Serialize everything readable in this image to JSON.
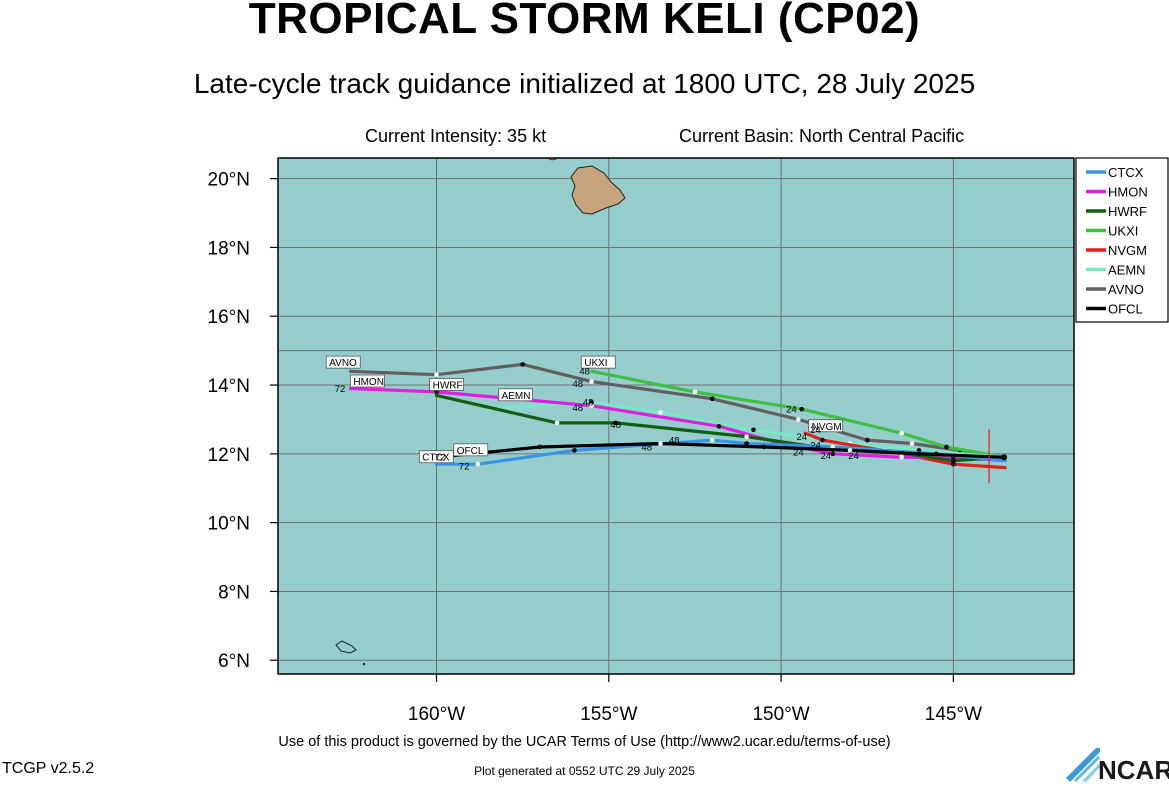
{
  "header": {
    "title": "TROPICAL STORM KELI (CP02)",
    "subtitle": "Late-cycle track guidance initialized at 1800 UTC, 28 July 2025",
    "intensity": "Current Intensity: 35 kt",
    "basin": "Current Basin: North Central Pacific"
  },
  "map": {
    "lon_range": [
      -164.6,
      -141.5
    ],
    "lat_range": [
      5.6,
      20.6
    ],
    "ocean_color": "#96cece",
    "land_color": "#c8a47e",
    "grid": true,
    "lat_ticks": [
      {
        "value": 20,
        "label": "20°N"
      },
      {
        "value": 18,
        "label": "18°N"
      },
      {
        "value": 16,
        "label": "16°N"
      },
      {
        "value": 14,
        "label": "14°N"
      },
      {
        "value": 12,
        "label": "12°N"
      },
      {
        "value": 10,
        "label": "10°N"
      },
      {
        "value": 8,
        "label": "8°N"
      },
      {
        "value": 6,
        "label": "6°N"
      }
    ],
    "lon_ticks": [
      {
        "value": -160,
        "label": "160°W"
      },
      {
        "value": -155,
        "label": "155°W"
      },
      {
        "value": -150,
        "label": "150°W"
      },
      {
        "value": -145,
        "label": "145°W"
      }
    ],
    "current_position": {
      "lon": -143.5,
      "lat": 11.9
    },
    "legend_position": "top-right",
    "legend": [
      {
        "name": "CTCX",
        "color": "#3a94e6"
      },
      {
        "name": "HMON",
        "color": "#e020e0"
      },
      {
        "name": "HWRF",
        "color": "#106010"
      },
      {
        "name": "UKXI",
        "color": "#40c040"
      },
      {
        "name": "NVGM",
        "color": "#e0201a"
      },
      {
        "name": "AEMN",
        "color": "#7ae8c4"
      },
      {
        "name": "AVNO",
        "color": "#606060"
      },
      {
        "name": "OFCL",
        "color": "#000000"
      }
    ],
    "tracks": [
      {
        "name": "AVNO",
        "color": "#606060",
        "label": "AVNO",
        "label_pos": [
          -163.2,
          14.55
        ],
        "points": [
          [
            -143.5,
            11.9
          ],
          [
            -144.8,
            12.1
          ],
          [
            -146.2,
            12.3
          ],
          [
            -147.5,
            12.4
          ],
          [
            -149.5,
            13.0
          ],
          [
            -152.0,
            13.6
          ],
          [
            -155.5,
            14.1
          ],
          [
            -157.5,
            14.6
          ],
          [
            -160.0,
            14.3
          ],
          [
            -162.5,
            14.4
          ]
        ]
      },
      {
        "name": "UKXI",
        "color": "#40c040",
        "label": "UKXI",
        "label_pos": [
          -155.8,
          14.55
        ],
        "points": [
          [
            -143.5,
            11.9
          ],
          [
            -145.2,
            12.2
          ],
          [
            -146.5,
            12.6
          ],
          [
            -149.4,
            13.3
          ],
          [
            -152.5,
            13.8
          ],
          [
            -155.5,
            14.4
          ]
        ]
      },
      {
        "name": "AEMN",
        "color": "#7ae8c4",
        "label": "AEMN",
        "label_pos": [
          -158.2,
          13.6
        ],
        "points": [
          [
            -143.5,
            11.9
          ],
          [
            -146.0,
            12.1
          ],
          [
            -148.0,
            12.3
          ],
          [
            -150.8,
            12.7
          ],
          [
            -153.5,
            13.2
          ],
          [
            -155.5,
            13.5
          ],
          [
            -158.5,
            13.3
          ]
        ]
      },
      {
        "name": "NVGM",
        "color": "#e0201a",
        "label": "NVGM",
        "label_pos": [
          -149.2,
          12.7
        ],
        "points": [
          [
            -143.5,
            11.6
          ],
          [
            -145.0,
            11.7
          ],
          [
            -146.5,
            12.0
          ],
          [
            -148.8,
            12.4
          ],
          [
            -149.3,
            12.6
          ]
        ]
      },
      {
        "name": "HMON",
        "color": "#e020e0",
        "label": "HMON",
        "label_pos": [
          -162.5,
          14.0
        ],
        "points": [
          [
            -143.5,
            11.8
          ],
          [
            -145.0,
            11.9
          ],
          [
            -146.5,
            11.9
          ],
          [
            -148.5,
            12.0
          ],
          [
            -150.0,
            12.3
          ],
          [
            -151.8,
            12.8
          ],
          [
            -155.5,
            13.4
          ],
          [
            -160.0,
            13.8
          ],
          [
            -162.5,
            13.9
          ]
        ]
      },
      {
        "name": "HWRF",
        "color": "#106010",
        "label": "HWRF",
        "label_pos": [
          -160.2,
          13.9
        ],
        "points": [
          [
            -143.5,
            11.9
          ],
          [
            -145.0,
            11.8
          ],
          [
            -147.0,
            12.1
          ],
          [
            -149.0,
            12.2
          ],
          [
            -151.0,
            12.5
          ],
          [
            -154.8,
            12.9
          ],
          [
            -156.5,
            12.9
          ],
          [
            -160.0,
            13.7
          ]
        ]
      },
      {
        "name": "CTCX",
        "color": "#3a94e6",
        "label": "CTCX",
        "label_pos": [
          -160.5,
          11.8
        ],
        "points": [
          [
            -143.5,
            11.8
          ],
          [
            -145.5,
            12.0
          ],
          [
            -148.5,
            12.2
          ],
          [
            -151.0,
            12.3
          ],
          [
            -152.0,
            12.4
          ],
          [
            -156.0,
            12.1
          ],
          [
            -158.8,
            11.7
          ],
          [
            -160.0,
            11.7
          ]
        ]
      },
      {
        "name": "OFCL",
        "color": "#000000",
        "label": "OFCL",
        "label_pos": [
          -159.5,
          12.0
        ],
        "points": [
          [
            -143.5,
            11.9
          ],
          [
            -146.0,
            12.0
          ],
          [
            -148.0,
            12.1
          ],
          [
            -150.5,
            12.2
          ],
          [
            -153.5,
            12.3
          ],
          [
            -157.0,
            12.2
          ],
          [
            -160.0,
            11.9
          ]
        ]
      }
    ],
    "hour_labels": [
      {
        "text": "48",
        "lon": -155.7,
        "lat": 14.3
      },
      {
        "text": "48",
        "lon": -155.9,
        "lat": 13.95
      },
      {
        "text": "48",
        "lon": -155.9,
        "lat": 13.25
      },
      {
        "text": "48",
        "lon": -155.6,
        "lat": 13.4
      },
      {
        "text": "48",
        "lon": -154.8,
        "lat": 12.75
      },
      {
        "text": "48",
        "lon": -153.9,
        "lat": 12.1
      },
      {
        "text": "48",
        "lon": -153.1,
        "lat": 12.3
      },
      {
        "text": "24",
        "lon": -149.7,
        "lat": 13.2
      },
      {
        "text": "24",
        "lon": -149.4,
        "lat": 12.4
      },
      {
        "text": "24",
        "lon": -149.0,
        "lat": 12.6
      },
      {
        "text": "24",
        "lon": -149.0,
        "lat": 12.15
      },
      {
        "text": "24",
        "lon": -149.5,
        "lat": 11.95
      },
      {
        "text": "24",
        "lon": -148.7,
        "lat": 11.85
      },
      {
        "text": "24",
        "lon": -147.9,
        "lat": 11.85
      },
      {
        "text": "72",
        "lon": -162.8,
        "lat": 13.8
      },
      {
        "text": "72",
        "lon": -159.9,
        "lat": 11.8
      },
      {
        "text": "72",
        "lon": -159.2,
        "lat": 11.55
      }
    ]
  },
  "footer": {
    "terms": "Use of this product is governed by the UCAR Terms of Use (http://www2.ucar.edu/terms-of-use)",
    "version": "TCGP v2.5.2",
    "generated": "Plot generated at 0552 UTC   29 July 2025",
    "logo_text": "NCAR"
  }
}
